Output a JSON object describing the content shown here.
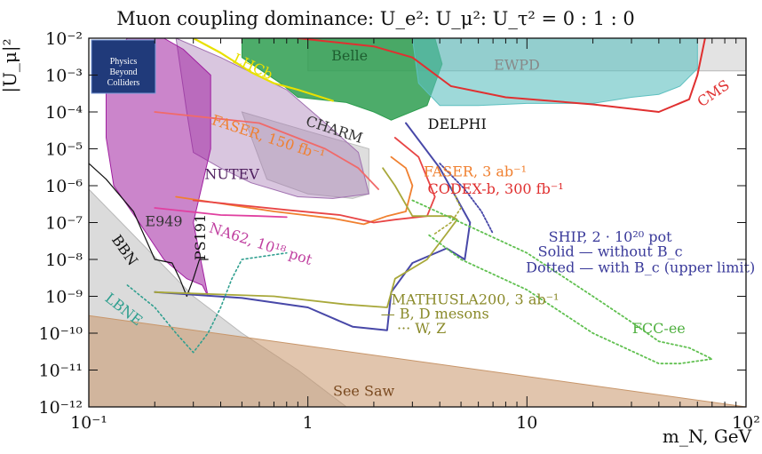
{
  "chart_data": {
    "type": "area",
    "title": "Muon coupling dominance: U_e²: U_μ²: U_τ² = 0 : 1 : 0",
    "xlabel": "m_N, GeV",
    "ylabel": "|U_μ|²",
    "x_scale": "log",
    "y_scale": "log",
    "xlim": [
      0.1,
      100
    ],
    "ylim": [
      1e-12,
      0.01
    ],
    "x_ticks": [
      {
        "value": 0.1,
        "label": "10⁻¹"
      },
      {
        "value": 1,
        "label": "1"
      },
      {
        "value": 10,
        "label": "10"
      },
      {
        "value": 100,
        "label": "10²"
      }
    ],
    "y_ticks": [
      {
        "value": 0.01,
        "label": "10⁻²"
      },
      {
        "value": 0.001,
        "label": "10⁻³"
      },
      {
        "value": 0.0001,
        "label": "10⁻⁴"
      },
      {
        "value": 1e-05,
        "label": "10⁻⁵"
      },
      {
        "value": 1e-06,
        "label": "10⁻⁶"
      },
      {
        "value": 1e-07,
        "label": "10⁻⁷"
      },
      {
        "value": 1e-08,
        "label": "10⁻⁸"
      },
      {
        "value": 1e-09,
        "label": "10⁻⁹"
      },
      {
        "value": 1e-10,
        "label": "10⁻¹⁰"
      },
      {
        "value": 1e-11,
        "label": "10⁻¹¹"
      },
      {
        "value": 1e-12,
        "label": "10⁻¹²"
      }
    ],
    "grid": false,
    "logo_lines": [
      "Physics",
      "Beyond",
      "Colliders"
    ],
    "regions": [
      {
        "name": "BBN",
        "color": "#b8b8b8",
        "opacity": 0.5,
        "boundary": [
          [
            0.1,
            8e-07
          ],
          [
            0.3,
            1e-09
          ],
          [
            0.5,
            1e-10
          ],
          [
            0.9,
            1e-11
          ],
          [
            1.5,
            1e-12
          ],
          [
            0.1,
            1e-12
          ]
        ]
      },
      {
        "name": "EWPD",
        "color": "#b8b8b8",
        "opacity": 0.4,
        "boundary": [
          [
            1,
            0.0013
          ],
          [
            100,
            0.0013
          ],
          [
            100,
            0.01
          ],
          [
            1,
            0.01
          ]
        ]
      },
      {
        "name": "See Saw",
        "color": "#c8966a",
        "opacity": 0.55,
        "boundary": [
          [
            0.1,
            3e-10
          ],
          [
            100,
            1e-12
          ],
          [
            0.1,
            1e-12
          ]
        ]
      },
      {
        "name": "CHARM",
        "color": "#bdbdbd",
        "opacity": 0.5,
        "boundary": [
          [
            0.5,
            0.0001
          ],
          [
            1,
            3e-05
          ],
          [
            1.5,
            1.5e-05
          ],
          [
            1.9,
            1e-05
          ],
          [
            1.9,
            6e-07
          ],
          [
            1.6,
            4.5e-07
          ],
          [
            1,
            6e-07
          ],
          [
            0.65,
            1.5e-06
          ]
        ]
      },
      {
        "name": "NUTEV",
        "color": "#a070b0",
        "opacity": 0.4,
        "boundary": [
          [
            0.25,
            0.01
          ],
          [
            0.4,
            0.003
          ],
          [
            0.8,
            0.0004
          ],
          [
            1.2,
            5e-05
          ],
          [
            1.7,
            8e-06
          ],
          [
            1.9,
            6e-07
          ],
          [
            1.3,
            4.5e-07
          ],
          [
            0.9,
            5e-07
          ],
          [
            0.55,
            1.2e-06
          ],
          [
            0.4,
            3e-06
          ],
          [
            0.3,
            8e-06
          ],
          [
            0.28,
            0.0001
          ]
        ]
      },
      {
        "name": "PS191",
        "color": "#a020a0",
        "opacity": 0.55,
        "boundary": [
          [
            0.12,
            0.002
          ],
          [
            0.15,
            0.01
          ],
          [
            0.22,
            0.01
          ],
          [
            0.27,
            0.005
          ],
          [
            0.36,
            0.001
          ],
          [
            0.36,
            1e-05
          ],
          [
            0.3,
            1e-07
          ],
          [
            0.35,
            1e-09
          ],
          [
            0.33,
            2e-09
          ],
          [
            0.28,
            3e-09
          ],
          [
            0.22,
            1e-08
          ],
          [
            0.17,
            1e-07
          ],
          [
            0.13,
            1e-06
          ],
          [
            0.12,
            2e-05
          ]
        ]
      },
      {
        "name": "Belle",
        "color": "#2e9e50",
        "opacity": 0.85,
        "boundary": [
          [
            0.5,
            0.01
          ],
          [
            3.8,
            0.01
          ],
          [
            4.1,
            0.002
          ],
          [
            3.5,
            0.00015
          ],
          [
            2.4,
            6e-05
          ],
          [
            2,
            0.0001
          ],
          [
            1.5,
            0.00018
          ],
          [
            0.9,
            0.00025
          ],
          [
            0.75,
            0.0006
          ],
          [
            0.5,
            0.003
          ]
        ]
      },
      {
        "name": "DELPHI",
        "color": "#5ec0c0",
        "opacity": 0.6,
        "boundary": [
          [
            3,
            0.01
          ],
          [
            60,
            0.01
          ],
          [
            60,
            0.0015
          ],
          [
            50,
            0.0005
          ],
          [
            40,
            0.0003
          ],
          [
            30,
            0.00025
          ],
          [
            20,
            0.00017
          ],
          [
            10,
            0.00017
          ],
          [
            6,
            0.00015
          ],
          [
            4,
            0.00015
          ],
          [
            3.2,
            0.0006
          ]
        ]
      }
    ],
    "curves": [
      {
        "name": "LHCb",
        "color": "#e8e000",
        "width": 2.2,
        "points": [
          [
            0.3,
            0.01
          ],
          [
            0.4,
            0.004
          ],
          [
            0.55,
            0.0012
          ],
          [
            0.7,
            0.0006
          ],
          [
            0.9,
            0.0004
          ],
          [
            1.3,
            0.0002
          ]
        ]
      },
      {
        "name": "CMS",
        "color": "#e03030",
        "width": 2,
        "points": [
          [
            0.9,
            0.01
          ],
          [
            2,
            0.006
          ],
          [
            3,
            0.003
          ],
          [
            4.5,
            0.0005
          ],
          [
            8,
            0.00025
          ],
          [
            20,
            0.00016
          ],
          [
            40,
            0.0001
          ],
          [
            55,
            0.00022
          ],
          [
            60,
            0.001
          ],
          [
            65,
            0.01
          ]
        ]
      },
      {
        "name": "FASER, 150 fb⁻¹",
        "color": "#f06a6a",
        "width": 1.8,
        "points": [
          [
            0.2,
            0.0001
          ],
          [
            0.6,
            5e-05
          ],
          [
            1.2,
            1e-05
          ],
          [
            1.7,
            3e-06
          ],
          [
            2.1,
            8e-07
          ]
        ]
      },
      {
        "name": "E949",
        "color": "#111111",
        "width": 1.2,
        "points": [
          [
            0.1,
            4e-06
          ],
          [
            0.12,
            1.5e-06
          ],
          [
            0.16,
            2e-07
          ],
          [
            0.2,
            1e-08
          ],
          [
            0.24,
            8e-09
          ],
          [
            0.26,
            3e-09
          ],
          [
            0.28,
            1e-09
          ],
          [
            0.3,
            3e-09
          ],
          [
            0.32,
            1e-08
          ],
          [
            0.35,
            1e-08
          ]
        ]
      },
      {
        "name": "FASER, 3 ab⁻¹",
        "color": "#f08030",
        "width": 1.8,
        "points": [
          [
            0.25,
            5e-07
          ],
          [
            0.7,
            2e-07
          ],
          [
            1.3,
            1.3e-07
          ],
          [
            1.8,
            9e-08
          ],
          [
            2.3,
            1.5e-07
          ],
          [
            2.8,
            2e-07
          ],
          [
            3,
            1e-06
          ],
          [
            2.8,
            3e-06
          ],
          [
            2.4,
            6e-06
          ]
        ]
      },
      {
        "name": "CODEX-b, 300 fb⁻¹",
        "color": "#e84545",
        "width": 1.8,
        "points": [
          [
            0.3,
            4e-07
          ],
          [
            0.8,
            2.2e-07
          ],
          [
            1.4,
            1.6e-07
          ],
          [
            2,
            1e-07
          ],
          [
            2.5,
            1.2e-07
          ],
          [
            3.5,
            1.5e-07
          ],
          [
            3.8,
            5e-07
          ],
          [
            3.2,
            6e-06
          ],
          [
            2.5,
            2e-05
          ]
        ]
      },
      {
        "name": "NA62, 10¹⁸ pot",
        "color": "#e040a0",
        "width": 1.8,
        "points": [
          [
            0.2,
            2.5e-07
          ],
          [
            0.4,
            1.6e-07
          ],
          [
            0.6,
            1.5e-07
          ],
          [
            0.8,
            1.4e-07
          ]
        ]
      },
      {
        "name": "SHIP, 2·10²⁰ pot",
        "color": "#4848a8",
        "width": 2,
        "points": [
          [
            0.2,
            1.3e-09
          ],
          [
            0.5,
            9e-10
          ],
          [
            1,
            5e-10
          ],
          [
            1.6,
            1.5e-10
          ],
          [
            2.3,
            1.2e-10
          ],
          [
            2.4,
            1.3e-09
          ],
          [
            3,
            8e-09
          ],
          [
            4.3,
            2e-08
          ],
          [
            5.2,
            1e-08
          ],
          [
            5.5,
            1e-07
          ],
          [
            4,
            3e-06
          ],
          [
            2.8,
            5e-05
          ]
        ]
      },
      {
        "name": "MATHUSLA200, 3 ab⁻¹",
        "color": "#a8a83a",
        "width": 1.8,
        "points": [
          [
            0.2,
            1.3e-09
          ],
          [
            0.7,
            1e-09
          ],
          [
            1.5,
            6e-10
          ],
          [
            2.3,
            5e-10
          ],
          [
            2.5,
            3e-09
          ],
          [
            3.5,
            1e-08
          ],
          [
            4.3,
            5e-08
          ],
          [
            4.8,
            1.2e-07
          ],
          [
            4.5,
            1.5e-07
          ],
          [
            3,
            1.5e-07
          ],
          [
            2.5,
            1e-06
          ],
          [
            2.2,
            3e-06
          ]
        ]
      },
      {
        "name": "W, Z",
        "color": "#a8a83a",
        "width": 1.6,
        "dash": "2 3",
        "points": [
          [
            3.8,
            5e-08
          ],
          [
            4.5,
            1e-07
          ],
          [
            5,
            2.5e-07
          ],
          [
            4.8,
            4e-07
          ],
          [
            4.5,
            1e-06
          ]
        ]
      },
      {
        "name": "SHIP upper limit",
        "color": "#4848a8",
        "width": 1.8,
        "dash": "2 2",
        "points": [
          [
            4,
            4e-06
          ],
          [
            5.2,
            8e-07
          ],
          [
            6.2,
            2e-07
          ],
          [
            7,
            5e-08
          ]
        ]
      },
      {
        "name": "FCC-ee",
        "color": "#60c050",
        "width": 1.8,
        "dash": "2 3",
        "points": [
          [
            3,
            4e-07
          ],
          [
            5,
            1e-07
          ],
          [
            10,
            1.5e-08
          ],
          [
            20,
            1e-09
          ],
          [
            30,
            2e-10
          ],
          [
            40,
            6e-11
          ],
          [
            55,
            4e-11
          ],
          [
            70,
            2e-11
          ],
          [
            50,
            1.5e-11
          ],
          [
            40,
            1.5e-11
          ],
          [
            20,
            1e-10
          ],
          [
            10,
            1.5e-09
          ],
          [
            5,
            1e-08
          ],
          [
            3.5,
            5e-08
          ]
        ]
      },
      {
        "name": "LBNE",
        "color": "#2f9f8f",
        "width": 1.6,
        "dash": "2 3",
        "points": [
          [
            0.15,
            2e-09
          ],
          [
            0.2,
            5e-10
          ],
          [
            0.25,
            1e-10
          ],
          [
            0.3,
            3e-11
          ],
          [
            0.35,
            1e-10
          ],
          [
            0.4,
            5e-10
          ],
          [
            0.45,
            3e-09
          ],
          [
            0.5,
            1e-08
          ],
          [
            0.8,
            1.5e-08
          ]
        ]
      }
    ],
    "labels": [
      {
        "text": "EWPD",
        "x": 9.0,
        "y": 0.0014,
        "color": "#888888",
        "size": 16
      },
      {
        "text": "Belle",
        "x": 1.55,
        "y": 0.0025,
        "color": "#1e5e30",
        "size": 16
      },
      {
        "text": "LHCb",
        "x": 0.55,
        "y": 0.0013,
        "color": "#e8e000",
        "size": 16,
        "rotate": 25
      },
      {
        "text": "CMS",
        "x": 73,
        "y": 0.00025,
        "color": "#e03030",
        "size": 16,
        "rotate": -35
      },
      {
        "text": "DELPHI",
        "x": 4.8,
        "y": 3.5e-05,
        "color": "#111111",
        "size": 16
      },
      {
        "text": "CHARM",
        "x": 1.3,
        "y": 2.5e-05,
        "color": "#333333",
        "size": 16,
        "rotate": 18
      },
      {
        "text": "FASER, 150 fb⁻¹",
        "x": 0.65,
        "y": 1.5e-05,
        "color": "#f08030",
        "size": 16,
        "rotate": 18
      },
      {
        "text": "NUTEV",
        "x": 0.45,
        "y": 1.5e-06,
        "color": "#502060",
        "size": 16
      },
      {
        "text": "FASER, 3 ab⁻¹",
        "x": 5.8,
        "y": 1.8e-06,
        "color": "#f08030",
        "size": 16
      },
      {
        "text": "CODEX-b, 300 fb⁻¹",
        "x": 7.2,
        "y": 6e-07,
        "color": "#e03030",
        "size": 16
      },
      {
        "text": "NA62, 10¹⁸ pot",
        "x": 0.6,
        "y": 2e-08,
        "color": "#c040a0",
        "size": 16,
        "rotate": 18
      },
      {
        "text": "PS191",
        "x": 0.34,
        "y": 4e-08,
        "color": "#111111",
        "size": 14,
        "rotate": -90
      },
      {
        "text": "E949",
        "x": 0.22,
        "y": 8e-08,
        "color": "#333333",
        "size": 14
      },
      {
        "text": "BBN",
        "x": 0.14,
        "y": 1.5e-08,
        "color": "#111111",
        "size": 16,
        "rotate": 55
      },
      {
        "text": "LBNE",
        "x": 0.14,
        "y": 3.5e-10,
        "color": "#2f9f8f",
        "size": 16,
        "rotate": 38
      },
      {
        "text": "SHIP, 2 · 10²⁰ pot",
        "x": 24,
        "y": 3e-08,
        "color": "#3a3a9a",
        "size": 16
      },
      {
        "text": "Solid — without B_c",
        "x": 24,
        "y": 1.2e-08,
        "color": "#3a3a9a",
        "size": 16
      },
      {
        "text": "Dotted — with B_c (upper limit)",
        "x": 33,
        "y": 4.5e-09,
        "color": "#3a3a9a",
        "size": 16
      },
      {
        "text": "MATHUSLA200, 3 ab⁻¹",
        "x": 5.8,
        "y": 6e-10,
        "color": "#8a8a2a",
        "size": 16
      },
      {
        "text": "— B, D mesons",
        "x": 3.8,
        "y": 2.5e-10,
        "color": "#8a8a2a",
        "size": 16
      },
      {
        "text": "··· W, Z",
        "x": 3.3,
        "y": 1e-10,
        "color": "#8a8a2a",
        "size": 16
      },
      {
        "text": "FCC-ee",
        "x": 40,
        "y": 1e-10,
        "color": "#50b040",
        "size": 16
      },
      {
        "text": "See Saw",
        "x": 1.8,
        "y": 2e-12,
        "color": "#7a4a20",
        "size": 16
      }
    ]
  }
}
